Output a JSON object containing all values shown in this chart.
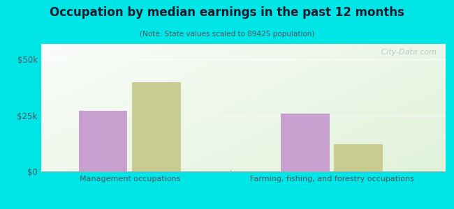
{
  "title": "Occupation by median earnings in the past 12 months",
  "subtitle": "(Note: State values scaled to 89425 population)",
  "background_color": "#00e5e5",
  "categories": [
    "Management occupations",
    "Farming, fishing, and forestry occupations"
  ],
  "values_89425": [
    27000,
    26000
  ],
  "values_nevada": [
    40000,
    12000
  ],
  "color_89425": "#c8a0d0",
  "color_nevada": "#c8cc90",
  "ylim": [
    0,
    57000
  ],
  "yticks": [
    0,
    25000,
    50000
  ],
  "ytick_labels": [
    "$0",
    "$25k",
    "$50k"
  ],
  "watermark": " City-Data.com",
  "bar_width": 0.12,
  "group_centers": [
    0.22,
    0.72
  ],
  "xlim": [
    0.0,
    1.0
  ]
}
